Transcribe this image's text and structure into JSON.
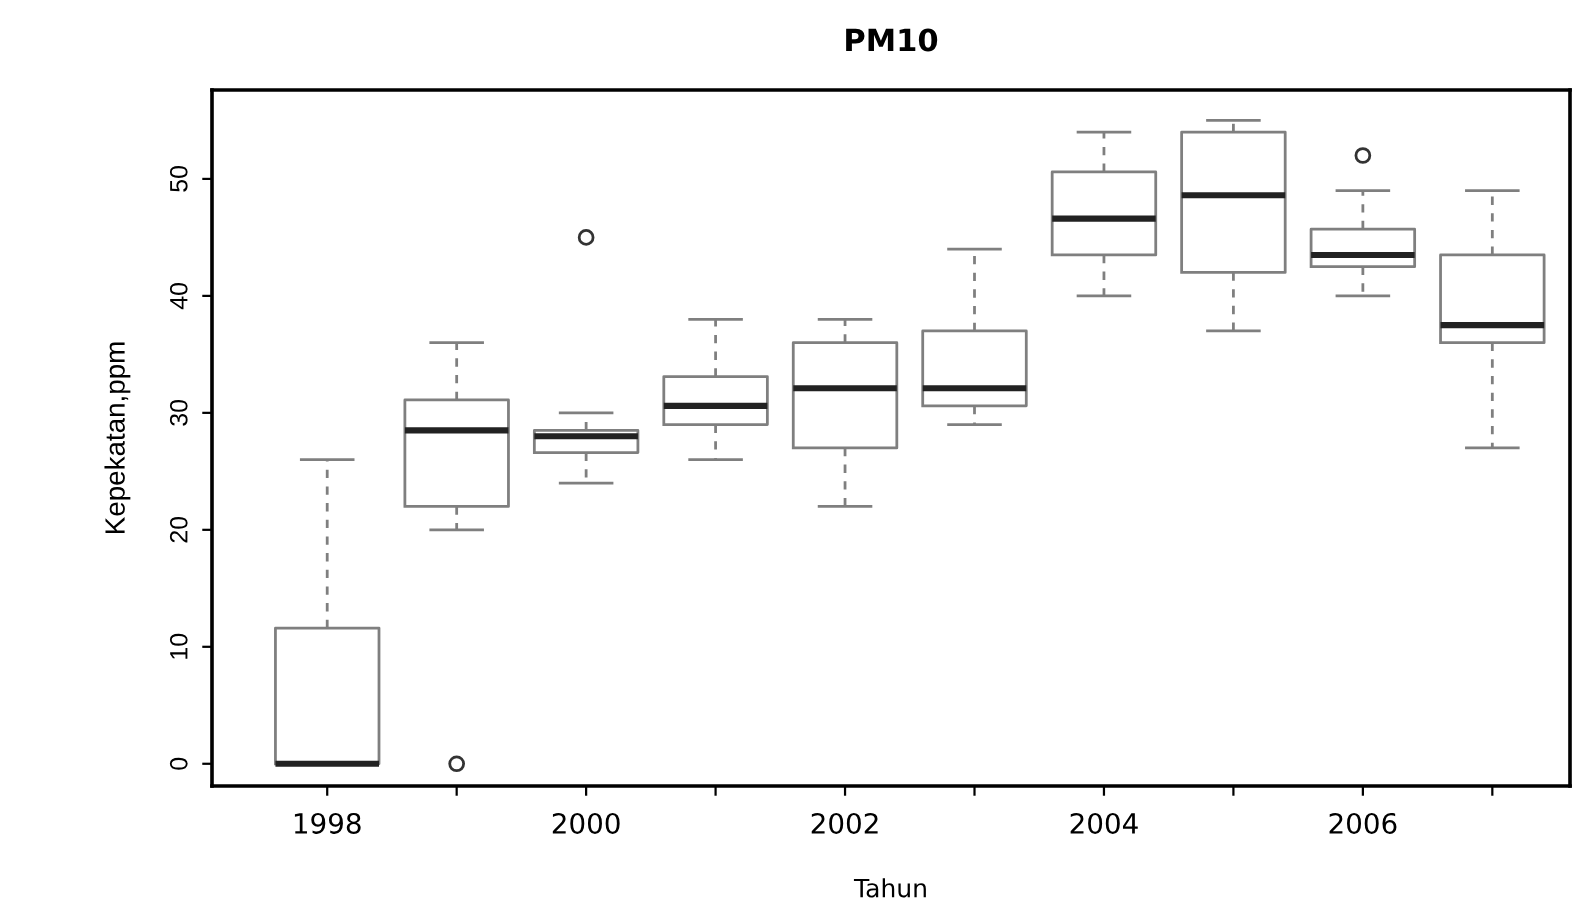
{
  "chart_data": {
    "type": "box",
    "title": "PM10",
    "xlabel": "Tahun",
    "ylabel": "Kepekatan,ppm",
    "categories": [
      "1998",
      null,
      "2000",
      null,
      "2002",
      null,
      "2004",
      null,
      "2006",
      null
    ],
    "boxes": [
      {
        "low": 0,
        "q1": 0,
        "median": 0,
        "q3": 11.6,
        "high": 26
      },
      {
        "low": 20,
        "q1": 22,
        "median": 28.5,
        "q3": 31.1,
        "high": 36,
        "outliers": [
          0
        ]
      },
      {
        "low": 24,
        "q1": 26.6,
        "median": 28,
        "q3": 28.5,
        "high": 30,
        "outliers": [
          45
        ]
      },
      {
        "low": 26,
        "q1": 29,
        "median": 30.6,
        "q3": 33.1,
        "high": 38
      },
      {
        "low": 22,
        "q1": 27,
        "median": 32.1,
        "q3": 36,
        "high": 38
      },
      {
        "low": 29,
        "q1": 30.6,
        "median": 32.1,
        "q3": 37,
        "high": 44
      },
      {
        "low": 40,
        "q1": 43.5,
        "median": 46.6,
        "q3": 50.6,
        "high": 54
      },
      {
        "low": 37,
        "q1": 42,
        "median": 48.6,
        "q3": 54,
        "high": 55
      },
      {
        "low": 40,
        "q1": 42.5,
        "median": 43.5,
        "q3": 45.7,
        "high": 49,
        "outliers": [
          52
        ]
      },
      {
        "low": 27,
        "q1": 36,
        "median": 37.5,
        "q3": 43.5,
        "high": 49
      }
    ],
    "color": "#7f7f7f",
    "ylim": [
      -1.9,
      57.6
    ],
    "yticks": [
      0,
      10,
      20,
      30,
      40,
      50
    ],
    "grid": false,
    "legend": false
  }
}
